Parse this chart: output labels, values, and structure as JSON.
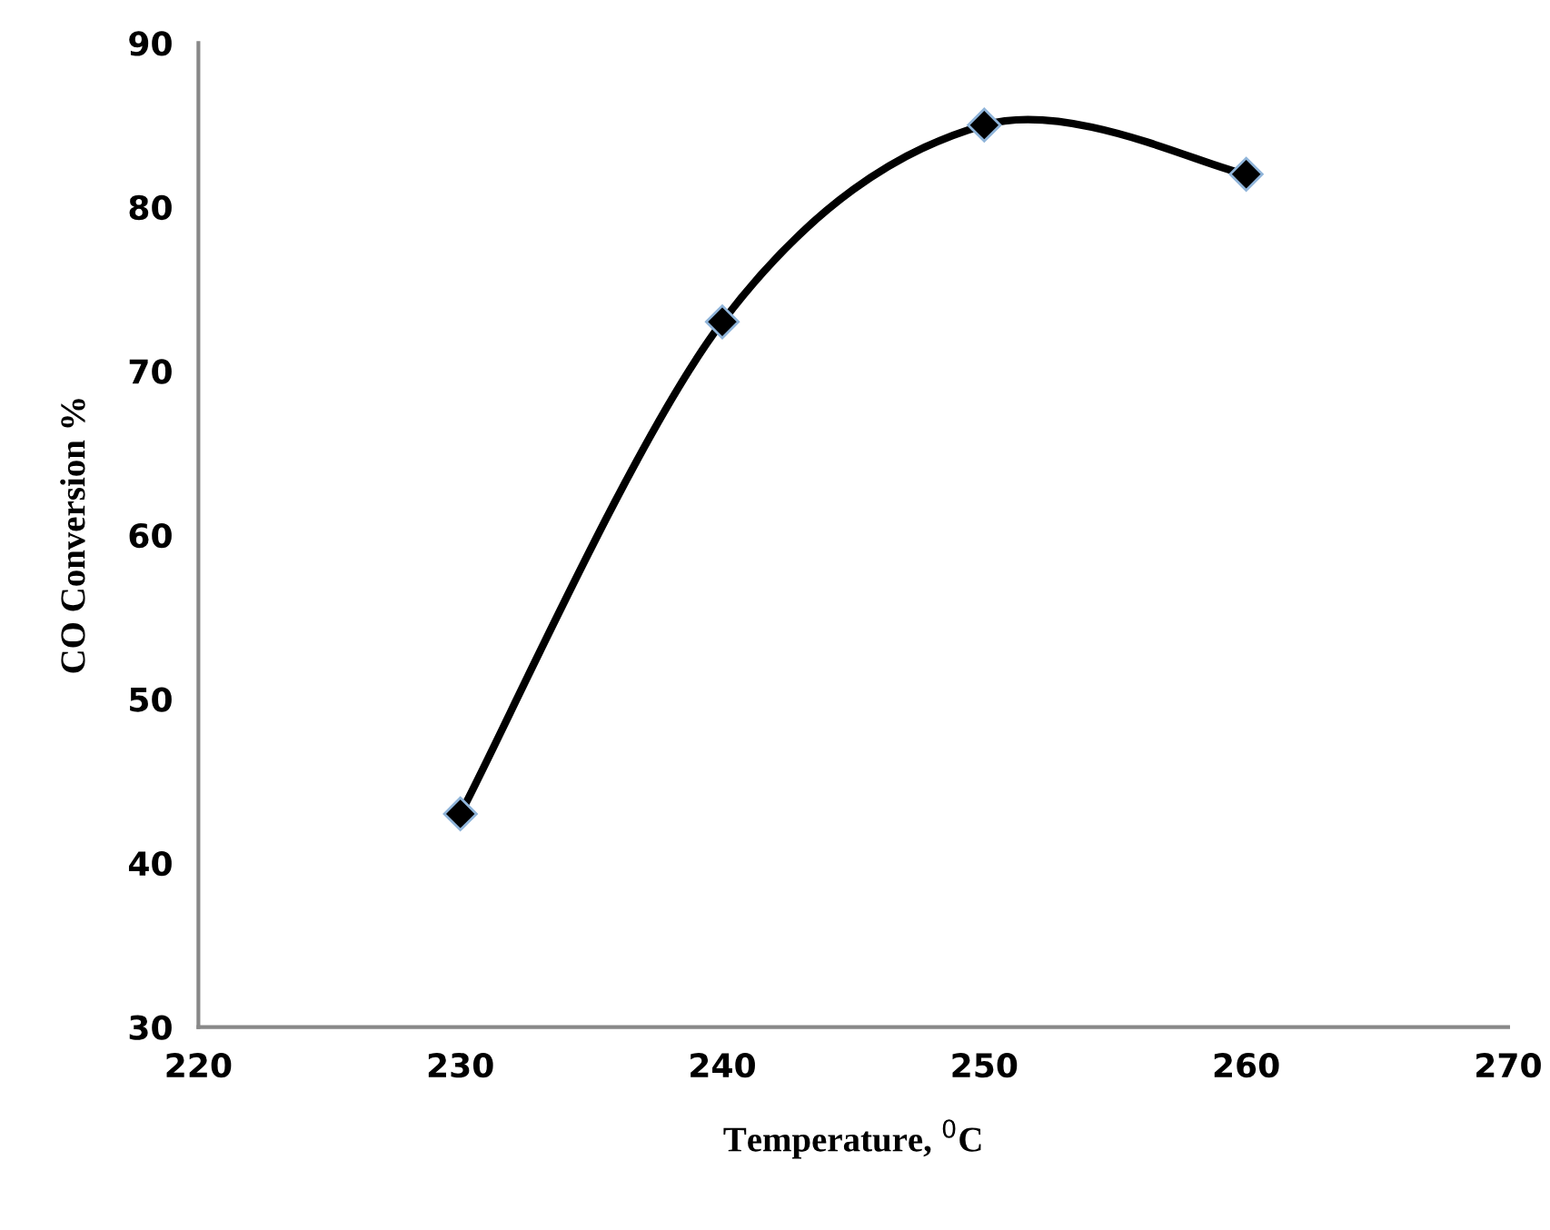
{
  "chart_data": {
    "type": "line",
    "xlabel": "Temperature, $^{0}$C",
    "ylabel": "CO Conversion %",
    "x": [
      230,
      240,
      250,
      260
    ],
    "series": [
      {
        "color": "#000000",
        "values": [
          43,
          73,
          85,
          82
        ]
      }
    ],
    "xlim": [
      220,
      270
    ],
    "xticks": [
      220,
      230,
      240,
      250,
      260,
      270
    ],
    "ylim": [
      30,
      90
    ],
    "yticks": [
      30,
      40,
      50,
      60,
      70,
      80,
      90
    ],
    "grid": false,
    "legend": false,
    "marker": "diamond",
    "line_style": "solid"
  }
}
